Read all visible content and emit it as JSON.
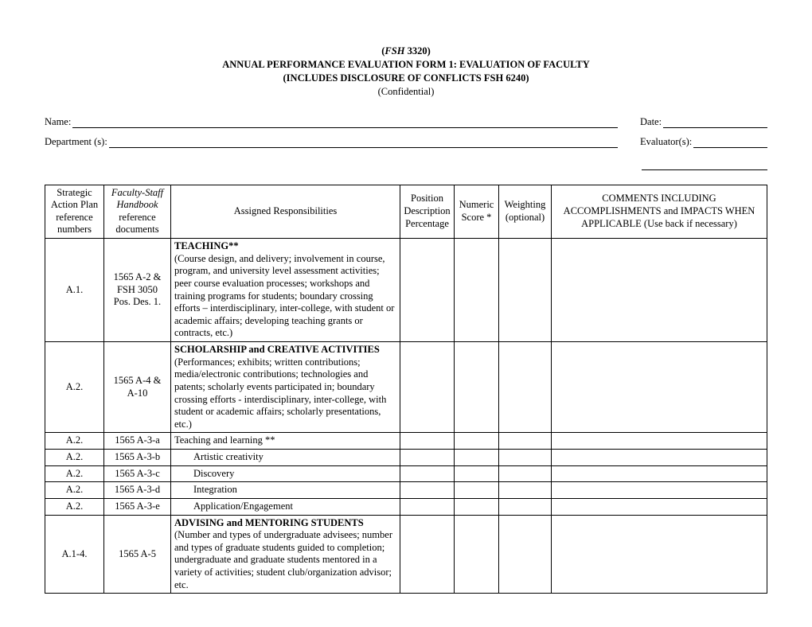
{
  "header": {
    "code_prefix": "(",
    "code_italic": "FSH",
    "code_rest": " 3320)",
    "title": "ANNUAL PERFORMANCE EVALUATION FORM 1:  EVALUATION OF FACULTY",
    "subtitle": "(INCLUDES DISCLOSURE OF CONFLICTS FSH 6240)",
    "confidential": "(Confidential)"
  },
  "fields": {
    "name_label": "Name:",
    "date_label": "Date:  ",
    "dept_label": "Department (s):",
    "eval_label": "Evaluator(s):  "
  },
  "columns": {
    "strategic": "Strategic Action Plan reference numbers",
    "handbook_line1": "Faculty-Staff Handbook",
    "handbook_line2": "reference documents",
    "assigned": "Assigned Responsibilities",
    "position": "Position Description Percentage",
    "score": "Numeric Score *",
    "weight": "Weighting (optional)",
    "comments": "COMMENTS INCLUDING ACCOMPLISHMENTS and IMPACTS WHEN APPLICABLE (Use back if necessary)"
  },
  "rows": [
    {
      "strategic": "A.1.",
      "handbook": "1565 A-2 & FSH 3050 Pos. Des. 1.",
      "lead": "TEACHING**",
      "desc": "(Course design, and delivery; involvement in course, program, and university level assessment activities; peer course evaluation processes; workshops and training programs for students;  boundary crossing efforts – interdisciplinary, inter-college, with student or academic affairs; developing teaching grants or contracts, etc.)",
      "indent": false
    },
    {
      "strategic": "A.2.",
      "handbook": "1565 A-4 & A-10",
      "lead": "SCHOLARSHIP and CREATIVE ACTIVITIES",
      "desc": "(Performances; exhibits; written contributions; media/electronic contributions; technologies and patents; scholarly events participated in; boundary crossing efforts - interdisciplinary, inter-college, with student or academic affairs; scholarly presentations, etc.)",
      "indent": false
    },
    {
      "strategic": "A.2.",
      "handbook": "1565 A-3-a",
      "lead": "",
      "desc": "Teaching and learning **",
      "indent": false
    },
    {
      "strategic": "A.2.",
      "handbook": "1565 A-3-b",
      "lead": "",
      "desc": "Artistic creativity",
      "indent": true
    },
    {
      "strategic": "A.2.",
      "handbook": "1565 A-3-c",
      "lead": "",
      "desc": "Discovery",
      "indent": true
    },
    {
      "strategic": "A.2.",
      "handbook": "1565 A-3-d",
      "lead": "",
      "desc": "Integration",
      "indent": true
    },
    {
      "strategic": "A.2.",
      "handbook": "1565 A-3-e",
      "lead": "",
      "desc": "Application/Engagement",
      "indent": true
    },
    {
      "strategic": "A.1-4.",
      "handbook": "1565 A-5",
      "lead": "ADVISING and  MENTORING STUDENTS",
      "desc": "(Number and types of undergraduate advisees; number and types of graduate students guided to completion; undergraduate and graduate students mentored in a variety of activities; student club/organization advisor; etc.",
      "indent": false
    }
  ]
}
